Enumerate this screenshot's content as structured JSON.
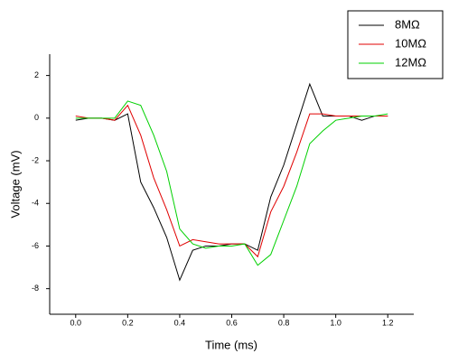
{
  "chart_data": {
    "type": "line",
    "x_label": "Time (ms)",
    "y_label": "Voltage (mV)",
    "x": [
      0,
      0.05,
      0.1,
      0.15,
      0.2,
      0.25,
      0.3,
      0.35,
      0.4,
      0.45,
      0.5,
      0.55,
      0.6,
      0.65,
      0.7,
      0.75,
      0.8,
      0.85,
      0.9,
      0.95,
      1.0,
      1.05,
      1.1,
      1.15,
      1.2
    ],
    "series": [
      {
        "name": "8MΩ",
        "color": "#000000",
        "values": [
          -0.1,
          0,
          0,
          -0.1,
          0.2,
          -3,
          -4.2,
          -5.6,
          -7.6,
          -6.2,
          -6,
          -6,
          -5.9,
          -5.9,
          -6.2,
          -3.7,
          -2.2,
          -0.3,
          1.6,
          0.1,
          0.1,
          0.1,
          -0.1,
          0.1,
          0.1
        ]
      },
      {
        "name": "10MΩ",
        "color": "#e00000",
        "values": [
          0.1,
          0,
          0,
          -0.1,
          0.6,
          -0.8,
          -2.8,
          -4.3,
          -6,
          -5.7,
          -5.8,
          -5.9,
          -5.9,
          -5.9,
          -6.5,
          -4.4,
          -3.2,
          -1.6,
          0.2,
          0.2,
          0.1,
          0.1,
          0.1,
          0.1,
          0.1
        ]
      },
      {
        "name": "12MΩ",
        "color": "#00d000",
        "values": [
          0,
          0,
          0,
          0,
          0.8,
          0.6,
          -0.8,
          -2.5,
          -5.2,
          -5.9,
          -6.1,
          -6,
          -6,
          -5.9,
          -6.9,
          -6.4,
          -4.8,
          -3.2,
          -1.2,
          -0.6,
          -0.1,
          0,
          0.1,
          0.1,
          0.2
        ]
      }
    ],
    "xlim": [
      -0.1,
      1.3
    ],
    "ylim": [
      -9.2,
      3
    ],
    "xticks": [
      {
        "value": 0,
        "label": "0.0"
      },
      0.2,
      0.4,
      0.6,
      0.8,
      {
        "value": 1,
        "label": "1.0"
      },
      1.2
    ],
    "yticks": [
      -8,
      -6,
      -4,
      -2,
      0,
      2
    ],
    "legend": "top-right"
  }
}
